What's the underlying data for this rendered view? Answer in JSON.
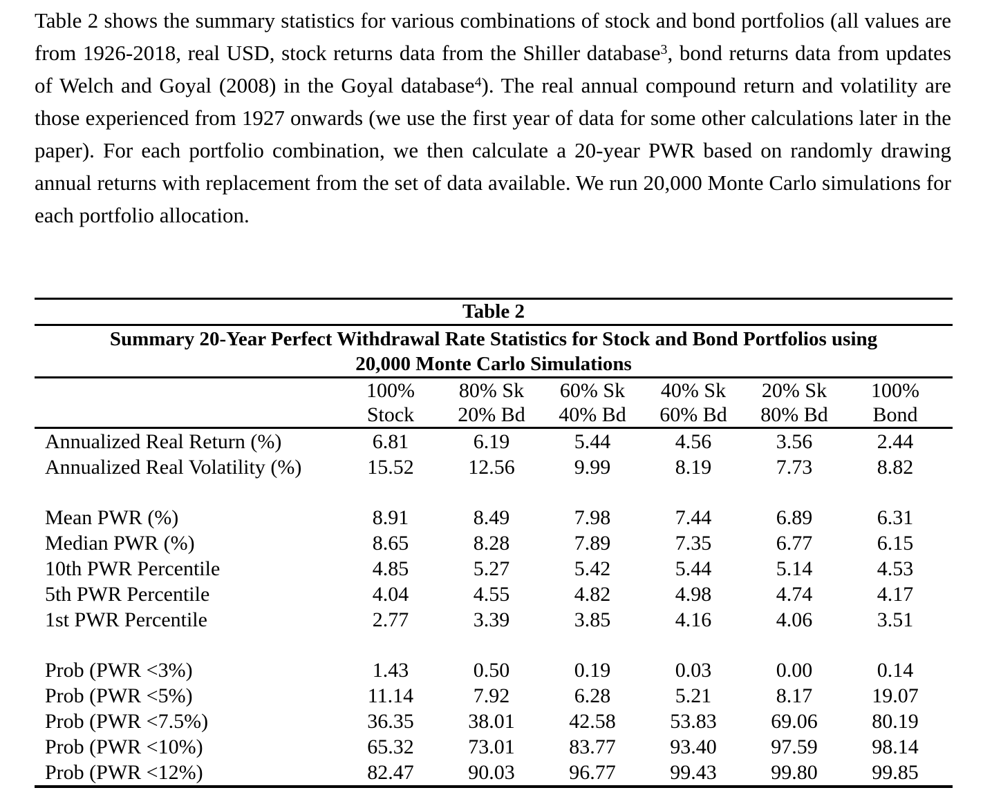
{
  "paragraph": {
    "seg1": "Table 2 shows the summary statistics for various combinations of stock and bond portfolios (all values are from 1926-2018, real USD, stock returns data from the Shiller database",
    "sup1": "3",
    "seg2": ", bond returns data from updates of Welch and Goyal (2008) in the Goyal database",
    "sup2": "4",
    "seg3": "). The real annual compound return and volatility are those experienced from 1927 onwards (we use the first year of data for some other calculations later in the paper). For each portfolio combination, we then calculate a 20-year PWR based on randomly drawing annual returns with replacement from the set of data available. We run 20,000 Monte Carlo simulations for each portfolio allocation."
  },
  "table": {
    "caption": "Table 2",
    "title_line1": "Summary 20-Year Perfect Withdrawal Rate Statistics for Stock and Bond Portfolios using",
    "title_line2": "20,000 Monte Carlo Simulations",
    "columns": [
      {
        "line1": "100%",
        "line2": "Stock"
      },
      {
        "line1": "80% Sk",
        "line2": "20% Bd"
      },
      {
        "line1": "60% Sk",
        "line2": "40% Bd"
      },
      {
        "line1": "40% Sk",
        "line2": "60% Bd"
      },
      {
        "line1": "20% Sk",
        "line2": "80% Bd"
      },
      {
        "line1": "100%",
        "line2": "Bond"
      }
    ],
    "row_groups": [
      [
        {
          "label": "Annualized Real Return (%)",
          "values": [
            "6.81",
            "6.19",
            "5.44",
            "4.56",
            "3.56",
            "2.44"
          ]
        },
        {
          "label": "Annualized Real Volatility (%)",
          "values": [
            "15.52",
            "12.56",
            "9.99",
            "8.19",
            "7.73",
            "8.82"
          ]
        }
      ],
      [
        {
          "label": "Mean PWR (%)",
          "values": [
            "8.91",
            "8.49",
            "7.98",
            "7.44",
            "6.89",
            "6.31"
          ]
        },
        {
          "label": "Median PWR (%)",
          "values": [
            "8.65",
            "8.28",
            "7.89",
            "7.35",
            "6.77",
            "6.15"
          ]
        },
        {
          "label": "10th PWR Percentile",
          "values": [
            "4.85",
            "5.27",
            "5.42",
            "5.44",
            "5.14",
            "4.53"
          ]
        },
        {
          "label": "5th PWR Percentile",
          "values": [
            "4.04",
            "4.55",
            "4.82",
            "4.98",
            "4.74",
            "4.17"
          ]
        },
        {
          "label": "1st PWR Percentile",
          "values": [
            "2.77",
            "3.39",
            "3.85",
            "4.16",
            "4.06",
            "3.51"
          ]
        }
      ],
      [
        {
          "label": "Prob (PWR <3%)",
          "values": [
            "1.43",
            "0.50",
            "0.19",
            "0.03",
            "0.00",
            "0.14"
          ]
        },
        {
          "label": "Prob (PWR <5%)",
          "values": [
            "11.14",
            "7.92",
            "6.28",
            "5.21",
            "8.17",
            "19.07"
          ]
        },
        {
          "label": "Prob (PWR <7.5%)",
          "values": [
            "36.35",
            "38.01",
            "42.58",
            "53.83",
            "69.06",
            "80.19"
          ]
        },
        {
          "label": "Prob (PWR <10%)",
          "values": [
            "65.32",
            "73.01",
            "83.77",
            "93.40",
            "97.59",
            "98.14"
          ]
        },
        {
          "label": "Prob (PWR <12%)",
          "values": [
            "82.47",
            "90.03",
            "96.77",
            "99.43",
            "99.80",
            "99.85"
          ]
        }
      ]
    ]
  }
}
